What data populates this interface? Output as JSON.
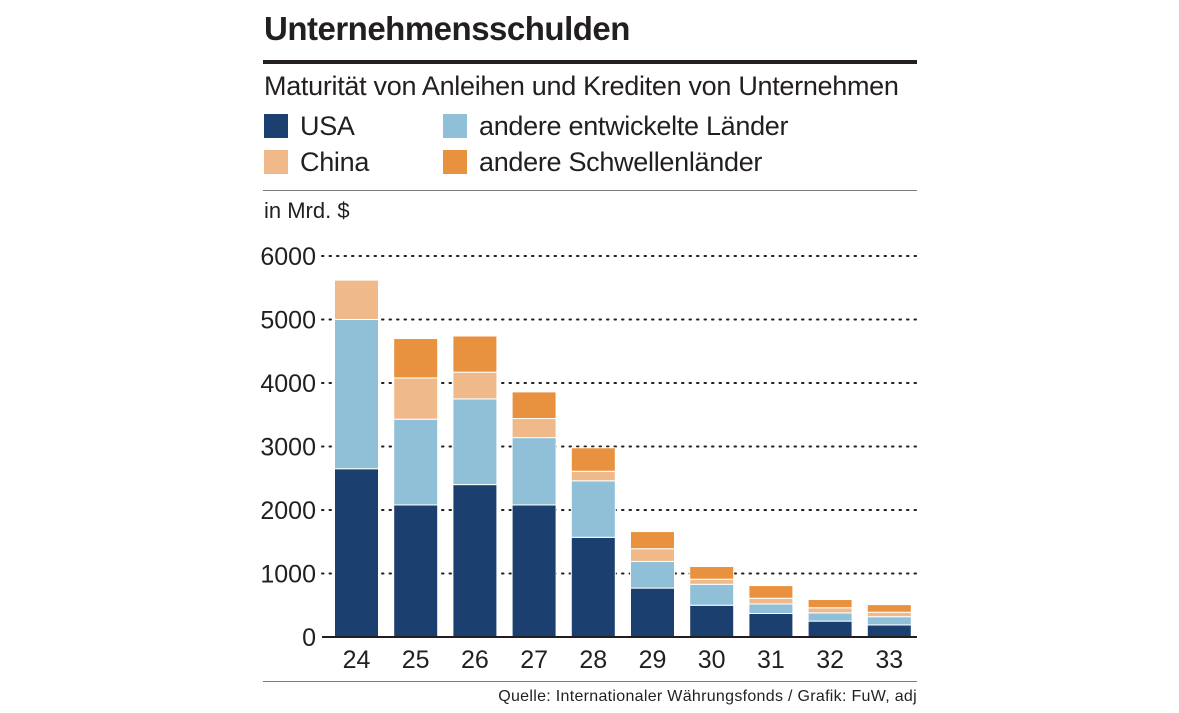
{
  "title": "Unternehmensschulden",
  "subtitle": "Maturität von Anleihen und Krediten von Unternehmen",
  "unit": "in Mrd. $",
  "source": "Quelle: Internationaler Währungsfonds / Grafik: FuW, adj",
  "legend": [
    {
      "label": "USA",
      "color": "#1b3f6f"
    },
    {
      "label": "andere entwickelte Länder",
      "color": "#8fc0d8"
    },
    {
      "label": "China",
      "color": "#efb98a"
    },
    {
      "label": "andere Schwellenländer",
      "color": "#e8913e"
    }
  ],
  "chart_data": {
    "type": "bar",
    "stacked": true,
    "title": "Unternehmensschulden",
    "subtitle": "Maturität von Anleihen und Krediten von Unternehmen",
    "ylabel": "in Mrd. $",
    "xlabel": "",
    "ylim": [
      0,
      6000
    ],
    "yticks": [
      0,
      1000,
      2000,
      3000,
      4000,
      5000,
      6000
    ],
    "grid": true,
    "categories": [
      "24",
      "25",
      "26",
      "27",
      "28",
      "29",
      "30",
      "31",
      "32",
      "33"
    ],
    "series": [
      {
        "name": "USA",
        "color": "#1b3f6f",
        "values": [
          2650,
          2080,
          2400,
          2080,
          1570,
          770,
          500,
          370,
          250,
          190
        ]
      },
      {
        "name": "andere entwickelte Länder",
        "color": "#8fc0d8",
        "values": [
          2350,
          1350,
          1350,
          1060,
          890,
          420,
          330,
          150,
          130,
          130
        ]
      },
      {
        "name": "China",
        "color": "#efb98a",
        "values": [
          620,
          650,
          420,
          300,
          150,
          200,
          80,
          90,
          80,
          70
        ]
      },
      {
        "name": "andere Schwellenländer",
        "color": "#e8913e",
        "values": [
          0,
          620,
          570,
          420,
          370,
          270,
          200,
          200,
          130,
          120
        ]
      }
    ]
  }
}
